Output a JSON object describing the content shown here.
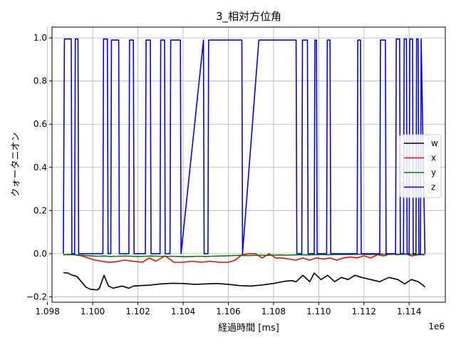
{
  "chart_data": {
    "type": "line",
    "title": "3_相対方位角",
    "xlabel": "経過時間 [ms]",
    "ylabel": "クォータニオン",
    "x_offset_label": "1e6",
    "xlim": [
      1.0982,
      1.1156
    ],
    "ylim": [
      -0.225,
      1.05
    ],
    "x_ticks": [
      1.098,
      1.1,
      1.102,
      1.104,
      1.106,
      1.108,
      1.11,
      1.112,
      1.114
    ],
    "x_tick_labels": [
      "1.098",
      "1.100",
      "1.102",
      "1.104",
      "1.106",
      "1.108",
      "1.110",
      "1.112",
      "1.114"
    ],
    "y_ticks": [
      -0.2,
      0.0,
      0.2,
      0.4,
      0.6,
      0.8,
      1.0
    ],
    "y_tick_labels": [
      "−0.2",
      "0.0",
      "0.2",
      "0.4",
      "0.6",
      "0.8",
      "1.0"
    ],
    "grid": true,
    "legend_position": "center-right",
    "series": [
      {
        "name": "w",
        "color": "#000000",
        "x": [
          1.0987,
          1.0989,
          1.0991,
          1.0993,
          1.0995,
          1.0997,
          1.0999,
          1.1002,
          1.1003,
          1.1005,
          1.1007,
          1.1009,
          1.1011,
          1.1013,
          1.1016,
          1.1018,
          1.1021,
          1.1025,
          1.103,
          1.1035,
          1.104,
          1.1045,
          1.105,
          1.1055,
          1.106,
          1.1065,
          1.107,
          1.1075,
          1.108,
          1.1085,
          1.1088,
          1.109,
          1.1093,
          1.1096,
          1.1098,
          1.1101,
          1.1104,
          1.1107,
          1.111,
          1.1113,
          1.1116,
          1.1119,
          1.1123,
          1.1127,
          1.1131,
          1.1135,
          1.1138,
          1.1141,
          1.1144,
          1.1146,
          1.1147
        ],
        "values": [
          -0.088,
          -0.09,
          -0.1,
          -0.105,
          -0.13,
          -0.155,
          -0.165,
          -0.168,
          -0.16,
          -0.1,
          -0.15,
          -0.16,
          -0.155,
          -0.15,
          -0.16,
          -0.15,
          -0.148,
          -0.146,
          -0.14,
          -0.137,
          -0.138,
          -0.142,
          -0.14,
          -0.138,
          -0.142,
          -0.148,
          -0.15,
          -0.145,
          -0.138,
          -0.128,
          -0.125,
          -0.13,
          -0.1,
          -0.13,
          -0.09,
          -0.12,
          -0.1,
          -0.13,
          -0.11,
          -0.12,
          -0.1,
          -0.11,
          -0.12,
          -0.13,
          -0.11,
          -0.12,
          -0.14,
          -0.12,
          -0.13,
          -0.145,
          -0.155
        ]
      },
      {
        "name": "x",
        "color": "#ff0000",
        "x": [
          1.0987,
          1.0991,
          1.0995,
          1.0998,
          1.1001,
          1.1004,
          1.1007,
          1.101,
          1.1014,
          1.1018,
          1.1022,
          1.1025,
          1.1028,
          1.1032,
          1.1036,
          1.104,
          1.1044,
          1.1048,
          1.1052,
          1.1056,
          1.106,
          1.1063,
          1.1066,
          1.1069,
          1.1072,
          1.1075,
          1.1078,
          1.1081,
          1.1084,
          1.1087,
          1.109,
          1.1093,
          1.1096,
          1.1099,
          1.1102,
          1.1105,
          1.1108,
          1.1111,
          1.1114,
          1.1117,
          1.112,
          1.1123,
          1.1126,
          1.1129,
          1.1132,
          1.1135,
          1.1138,
          1.1141,
          1.1144,
          1.1147
        ],
        "values": [
          -0.005,
          -0.003,
          -0.01,
          -0.02,
          -0.03,
          -0.035,
          -0.04,
          -0.038,
          -0.03,
          -0.035,
          -0.04,
          -0.02,
          -0.035,
          -0.01,
          -0.04,
          -0.04,
          -0.035,
          -0.04,
          -0.035,
          -0.04,
          -0.04,
          -0.03,
          -0.005,
          0.0,
          0.0,
          -0.02,
          0.0,
          -0.02,
          -0.02,
          -0.025,
          -0.03,
          -0.02,
          -0.03,
          -0.02,
          -0.025,
          -0.02,
          -0.03,
          -0.02,
          -0.015,
          -0.02,
          -0.01,
          -0.02,
          -0.005,
          -0.01,
          0.0,
          -0.005,
          0.0,
          -0.01,
          -0.005,
          -0.005
        ]
      },
      {
        "name": "y",
        "color": "#008000",
        "x": [
          1.0987,
          1.099,
          1.0993,
          1.0996,
          1.0999,
          1.1002,
          1.1005,
          1.1008,
          1.1011,
          1.1014,
          1.1017,
          1.102,
          1.1023,
          1.1026,
          1.1029,
          1.1032,
          1.1035,
          1.1038,
          1.1041,
          1.1044,
          1.1047,
          1.105,
          1.1053,
          1.1056,
          1.1059,
          1.1062,
          1.1065,
          1.1068,
          1.1071,
          1.1074,
          1.1077,
          1.108,
          1.1083,
          1.1086,
          1.1089,
          1.1092,
          1.1095,
          1.1098,
          1.1101,
          1.1104,
          1.1107,
          1.111,
          1.1113,
          1.1116,
          1.1119,
          1.1122,
          1.1125,
          1.1128,
          1.1131,
          1.1134,
          1.1137,
          1.114,
          1.1143,
          1.1147
        ],
        "values": [
          -0.005,
          -0.004,
          -0.006,
          -0.008,
          -0.01,
          -0.012,
          -0.011,
          -0.013,
          -0.012,
          -0.011,
          -0.012,
          -0.013,
          -0.012,
          -0.011,
          -0.012,
          -0.013,
          -0.012,
          -0.013,
          -0.014,
          -0.013,
          -0.012,
          -0.013,
          -0.012,
          -0.011,
          -0.01,
          -0.009,
          -0.008,
          -0.009,
          -0.008,
          -0.007,
          -0.008,
          -0.007,
          -0.006,
          -0.007,
          -0.006,
          -0.005,
          -0.006,
          -0.005,
          -0.004,
          -0.005,
          -0.004,
          -0.003,
          -0.004,
          -0.003,
          -0.003,
          -0.004,
          -0.003,
          -0.002,
          -0.003,
          -0.002,
          -0.003,
          -0.002,
          -0.003,
          -0.003
        ]
      },
      {
        "name": "z",
        "color": "#0000ff",
        "x": [
          1.0987,
          1.09875,
          1.09905,
          1.09908,
          1.0992,
          1.09923,
          1.09935,
          1.09938,
          1.10045,
          1.10048,
          1.10065,
          1.10068,
          1.1008,
          1.10083,
          1.10115,
          1.10118,
          1.1016,
          1.10163,
          1.1018,
          1.10183,
          1.10233,
          1.10236,
          1.10255,
          1.10258,
          1.10298,
          1.10301,
          1.10318,
          1.10321,
          1.10342,
          1.10345,
          1.10388,
          1.10391,
          1.1049,
          1.10493,
          1.1051,
          1.10513,
          1.1066,
          1.10663,
          1.10735,
          1.10738,
          1.109,
          1.10903,
          1.10925,
          1.10928,
          1.1095,
          1.10953,
          1.1098,
          1.10983,
          1.1099,
          1.10993,
          1.11035,
          1.11038,
          1.1105,
          1.11053,
          1.11075,
          1.11078,
          1.1117,
          1.11173,
          1.11185,
          1.11188,
          1.1127,
          1.11273,
          1.11295,
          1.11298,
          1.1134,
          1.11343,
          1.11358,
          1.11361,
          1.11375,
          1.11378,
          1.11388,
          1.11391,
          1.114,
          1.11403,
          1.11415,
          1.11418,
          1.1143,
          1.11433,
          1.1144,
          1.11443,
          1.1145,
          1.11453,
          1.1147
        ],
        "values": [
          0.0,
          0.995,
          0.995,
          0.0,
          0.0,
          0.995,
          0.995,
          0.0,
          0.0,
          0.995,
          0.995,
          0.0,
          0.0,
          0.99,
          0.99,
          0.0,
          0.0,
          0.99,
          0.99,
          0.0,
          0.0,
          0.99,
          0.99,
          0.0,
          0.0,
          0.99,
          0.99,
          0.0,
          0.0,
          0.99,
          0.99,
          0.0,
          0.99,
          0.0,
          0.0,
          0.99,
          0.99,
          0.0,
          0.99,
          0.99,
          0.99,
          0.0,
          0.0,
          0.99,
          0.99,
          0.0,
          0.0,
          0.99,
          0.99,
          0.0,
          0.0,
          0.99,
          0.99,
          0.0,
          0.0,
          0.0,
          0.0,
          0.99,
          0.99,
          0.0,
          0.0,
          0.99,
          0.99,
          0.0,
          0.0,
          0.995,
          0.995,
          0.0,
          0.0,
          0.995,
          0.995,
          0.0,
          0.0,
          0.995,
          0.995,
          0.0,
          0.0,
          0.995,
          0.995,
          0.0,
          0.0,
          0.995,
          0.0
        ]
      }
    ]
  }
}
